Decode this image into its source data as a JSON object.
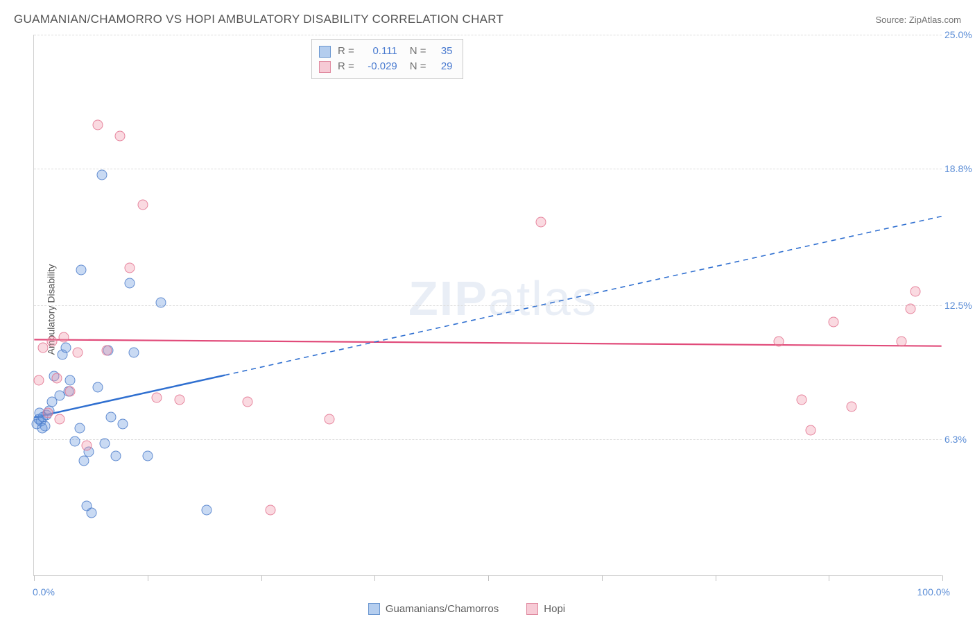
{
  "title": "GUAMANIAN/CHAMORRO VS HOPI AMBULATORY DISABILITY CORRELATION CHART",
  "source": "Source: ZipAtlas.com",
  "y_axis_label": "Ambulatory Disability",
  "watermark": "ZIPatlas",
  "chart": {
    "type": "scatter",
    "x_domain": [
      0,
      100
    ],
    "y_domain": [
      0,
      25
    ],
    "y_ticks": [
      6.3,
      12.5,
      18.8,
      25.0
    ],
    "y_tick_labels": [
      "6.3%",
      "12.5%",
      "18.8%",
      "25.0%"
    ],
    "x_ticks": [
      0,
      12.5,
      25,
      37.5,
      50,
      62.5,
      75,
      87.5,
      100
    ],
    "x_min_label": "0.0%",
    "x_max_label": "100.0%",
    "background_color": "#ffffff",
    "grid_color": "#dcdcdc",
    "axis_color": "#d0d0d0",
    "tick_label_color": "#5b8dd6",
    "point_radius": 7.5,
    "series": {
      "guamanian": {
        "label": "Guamanians/Chamorros",
        "color_fill": "rgba(100,150,220,0.35)",
        "color_stroke": "rgba(70,120,200,0.8)",
        "R": "0.111",
        "N": "35",
        "regression": {
          "x1": 0,
          "y1": 7.3,
          "x2": 100,
          "y2": 16.6,
          "solid_until_x": 21,
          "color": "#2f6fd0",
          "width": 2.5,
          "dash": "7,6"
        },
        "points": [
          [
            0.3,
            7.0
          ],
          [
            0.5,
            7.2
          ],
          [
            0.8,
            7.1
          ],
          [
            1.0,
            7.3
          ],
          [
            1.2,
            6.9
          ],
          [
            1.4,
            7.4
          ],
          [
            2.2,
            9.2
          ],
          [
            2.8,
            8.3
          ],
          [
            3.1,
            10.2
          ],
          [
            3.5,
            10.5
          ],
          [
            4.0,
            9.0
          ],
          [
            4.5,
            6.2
          ],
          [
            5.0,
            6.8
          ],
          [
            5.5,
            5.3
          ],
          [
            6.0,
            5.7
          ],
          [
            6.3,
            2.9
          ],
          [
            5.2,
            14.1
          ],
          [
            7.0,
            8.7
          ],
          [
            7.8,
            6.1
          ],
          [
            8.2,
            10.4
          ],
          [
            9.0,
            5.5
          ],
          [
            9.8,
            7.0
          ],
          [
            10.5,
            13.5
          ],
          [
            11.0,
            10.3
          ],
          [
            12.5,
            5.5
          ],
          [
            14.0,
            12.6
          ],
          [
            7.5,
            18.5
          ],
          [
            5.8,
            3.2
          ],
          [
            3.8,
            8.5
          ],
          [
            2.0,
            8.0
          ],
          [
            1.7,
            7.6
          ],
          [
            0.6,
            7.5
          ],
          [
            0.9,
            6.8
          ],
          [
            19.0,
            3.0
          ],
          [
            8.5,
            7.3
          ]
        ]
      },
      "hopi": {
        "label": "Hopi",
        "color_fill": "rgba(240,150,170,0.35)",
        "color_stroke": "rgba(225,110,140,0.8)",
        "R": "-0.029",
        "N": "29",
        "regression": {
          "x1": 0,
          "y1": 10.9,
          "x2": 100,
          "y2": 10.6,
          "color": "#e14b7a",
          "width": 2.2
        },
        "points": [
          [
            1.0,
            10.5
          ],
          [
            2.0,
            10.8
          ],
          [
            2.5,
            9.1
          ],
          [
            3.3,
            11.0
          ],
          [
            4.0,
            8.5
          ],
          [
            5.8,
            6.0
          ],
          [
            7.0,
            20.8
          ],
          [
            9.5,
            20.3
          ],
          [
            10.5,
            14.2
          ],
          [
            12.0,
            17.1
          ],
          [
            13.5,
            8.2
          ],
          [
            16.0,
            8.1
          ],
          [
            23.5,
            8.0
          ],
          [
            26.0,
            3.0
          ],
          [
            32.5,
            7.2
          ],
          [
            55.8,
            16.3
          ],
          [
            82.0,
            10.8
          ],
          [
            84.5,
            8.1
          ],
          [
            85.5,
            6.7
          ],
          [
            88.0,
            11.7
          ],
          [
            90.0,
            7.8
          ],
          [
            95.5,
            10.8
          ],
          [
            96.5,
            12.3
          ],
          [
            97.0,
            13.1
          ],
          [
            2.8,
            7.2
          ],
          [
            1.5,
            7.5
          ],
          [
            0.5,
            9.0
          ],
          [
            4.8,
            10.3
          ],
          [
            8.0,
            10.4
          ]
        ]
      }
    }
  },
  "stats_legend": {
    "labels": {
      "R": "R =",
      "N": "N ="
    }
  },
  "bottom_legend": {
    "items": [
      "guamanian",
      "hopi"
    ]
  }
}
